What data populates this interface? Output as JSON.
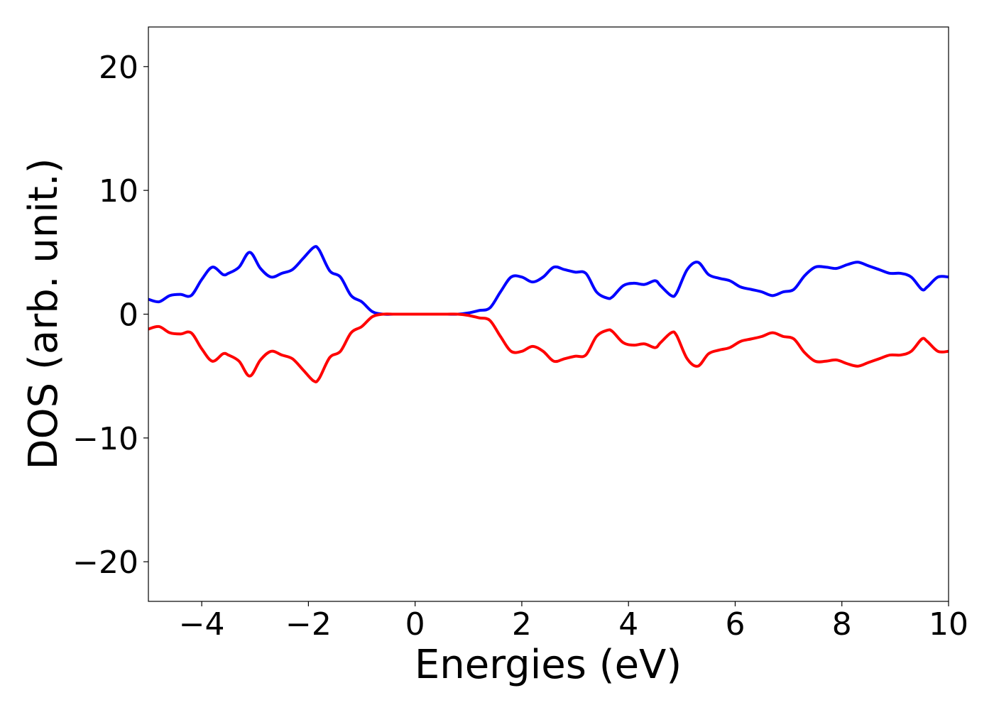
{
  "chart_data": {
    "type": "line",
    "title": "",
    "xlabel": "Energies (eV)",
    "ylabel": "DOS (arb. unit.)",
    "xlim": [
      -5,
      10
    ],
    "ylim": [
      -23.2,
      23.2
    ],
    "xticks": [
      -4,
      -2,
      0,
      2,
      4,
      6,
      8,
      10
    ],
    "xtick_labels": [
      "−4",
      "−2",
      "0",
      "2",
      "4",
      "6",
      "8",
      "10"
    ],
    "yticks": [
      -20,
      -10,
      0,
      10,
      20
    ],
    "ytick_labels": [
      "−20",
      "−10",
      "0",
      "10",
      "20"
    ],
    "grid": false,
    "series": [
      {
        "color": "#0000ff",
        "x": [
          -5.0,
          -4.8,
          -4.6,
          -4.4,
          -4.2,
          -4.0,
          -3.8,
          -3.6,
          -3.5,
          -3.3,
          -3.1,
          -2.9,
          -2.7,
          -2.5,
          -2.3,
          -2.1,
          -1.9,
          -1.8,
          -1.6,
          -1.4,
          -1.2,
          -1.0,
          -0.8,
          -0.6,
          -0.4,
          -0.2,
          0.0,
          0.2,
          0.4,
          0.6,
          0.8,
          1.0,
          1.2,
          1.4,
          1.6,
          1.8,
          2.0,
          2.2,
          2.4,
          2.6,
          2.8,
          3.0,
          3.2,
          3.4,
          3.6,
          3.7,
          3.9,
          4.1,
          4.3,
          4.5,
          4.6,
          4.8,
          4.9,
          5.1,
          5.3,
          5.5,
          5.7,
          5.9,
          6.1,
          6.3,
          6.5,
          6.7,
          6.9,
          7.1,
          7.3,
          7.5,
          7.7,
          7.9,
          8.1,
          8.3,
          8.5,
          8.7,
          8.9,
          9.1,
          9.3,
          9.5,
          9.6,
          9.8,
          10.0
        ],
        "values": [
          1.2,
          1.0,
          1.5,
          1.6,
          1.5,
          2.8,
          3.8,
          3.2,
          3.3,
          3.8,
          5.0,
          3.7,
          3.0,
          3.3,
          3.6,
          4.5,
          5.4,
          5.2,
          3.5,
          3.0,
          1.5,
          1.0,
          0.2,
          0.0,
          0.0,
          0.0,
          0.0,
          0.0,
          0.0,
          0.0,
          0.0,
          0.1,
          0.3,
          0.5,
          1.8,
          3.0,
          3.0,
          2.6,
          3.0,
          3.8,
          3.6,
          3.4,
          3.3,
          1.8,
          1.3,
          1.4,
          2.3,
          2.5,
          2.4,
          2.7,
          2.3,
          1.5,
          1.7,
          3.6,
          4.2,
          3.2,
          2.9,
          2.7,
          2.2,
          2.0,
          1.8,
          1.5,
          1.8,
          2.0,
          3.1,
          3.8,
          3.8,
          3.7,
          4.0,
          4.2,
          3.9,
          3.6,
          3.3,
          3.3,
          3.0,
          2.0,
          2.2,
          3.0,
          3.0
        ]
      },
      {
        "color": "#ff0000",
        "x": [
          -5.0,
          -4.8,
          -4.6,
          -4.4,
          -4.2,
          -4.0,
          -3.8,
          -3.6,
          -3.5,
          -3.3,
          -3.1,
          -2.9,
          -2.7,
          -2.5,
          -2.3,
          -2.1,
          -1.9,
          -1.8,
          -1.6,
          -1.4,
          -1.2,
          -1.0,
          -0.8,
          -0.6,
          -0.4,
          -0.2,
          0.0,
          0.2,
          0.4,
          0.6,
          0.8,
          1.0,
          1.2,
          1.4,
          1.6,
          1.8,
          2.0,
          2.2,
          2.4,
          2.6,
          2.8,
          3.0,
          3.2,
          3.4,
          3.6,
          3.7,
          3.9,
          4.1,
          4.3,
          4.5,
          4.6,
          4.8,
          4.9,
          5.1,
          5.3,
          5.5,
          5.7,
          5.9,
          6.1,
          6.3,
          6.5,
          6.7,
          6.9,
          7.1,
          7.3,
          7.5,
          7.7,
          7.9,
          8.1,
          8.3,
          8.5,
          8.7,
          8.9,
          9.1,
          9.3,
          9.5,
          9.6,
          9.8,
          10.0
        ],
        "values": [
          -1.2,
          -1.0,
          -1.5,
          -1.6,
          -1.5,
          -2.8,
          -3.8,
          -3.2,
          -3.3,
          -3.8,
          -5.0,
          -3.7,
          -3.0,
          -3.3,
          -3.6,
          -4.5,
          -5.4,
          -5.2,
          -3.5,
          -3.0,
          -1.5,
          -1.0,
          -0.2,
          0.0,
          0.0,
          0.0,
          0.0,
          0.0,
          0.0,
          0.0,
          0.0,
          -0.1,
          -0.3,
          -0.5,
          -1.8,
          -3.0,
          -3.0,
          -2.6,
          -3.0,
          -3.8,
          -3.6,
          -3.4,
          -3.3,
          -1.8,
          -1.3,
          -1.4,
          -2.3,
          -2.5,
          -2.4,
          -2.7,
          -2.3,
          -1.5,
          -1.7,
          -3.6,
          -4.2,
          -3.2,
          -2.9,
          -2.7,
          -2.2,
          -2.0,
          -1.8,
          -1.5,
          -1.8,
          -2.0,
          -3.1,
          -3.8,
          -3.8,
          -3.7,
          -4.0,
          -4.2,
          -3.9,
          -3.6,
          -3.3,
          -3.3,
          -3.0,
          -2.0,
          -2.2,
          -3.0,
          -3.0
        ]
      }
    ]
  }
}
